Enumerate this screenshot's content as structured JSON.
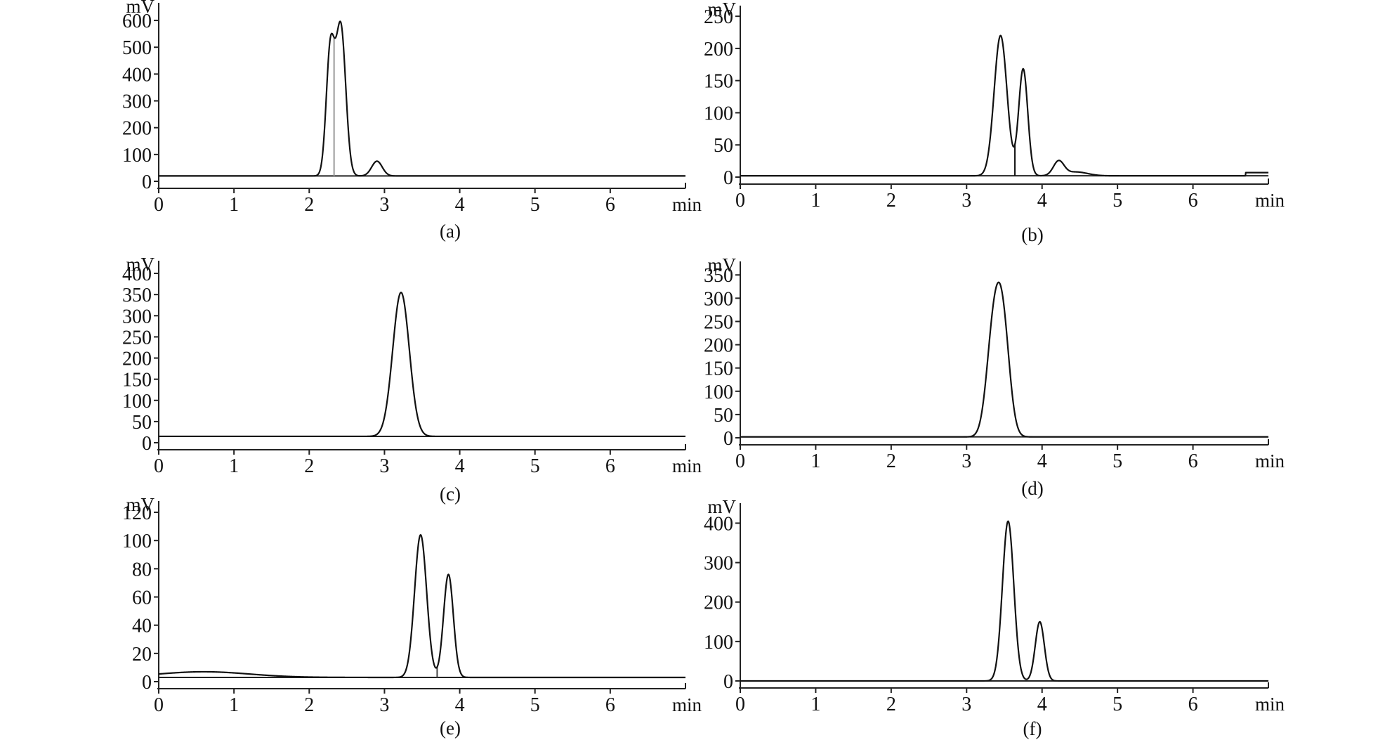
{
  "chart_data": [
    {
      "type": "line",
      "caption": "(a)",
      "xlabel": "min",
      "ylabel": "mV",
      "xlim": [
        0,
        7
      ],
      "ylim": [
        0,
        650
      ],
      "x_ticks": [
        0,
        1,
        2,
        3,
        4,
        5,
        6
      ],
      "y_ticks": [
        0,
        100,
        200,
        300,
        400,
        500,
        600
      ],
      "series": [
        {
          "baseline": 20,
          "peaks": [
            {
              "rt": 2.28,
              "height": 460,
              "sigma": 0.055
            },
            {
              "rt": 2.42,
              "height": 555,
              "sigma": 0.065
            },
            {
              "rt": 2.9,
              "height": 55,
              "sigma": 0.07
            }
          ],
          "drop_lines": [
            2.33
          ],
          "drop_line_color": "#999999"
        }
      ]
    },
    {
      "type": "line",
      "caption": "(b)",
      "xlabel": "min",
      "ylabel": "mV",
      "xlim": [
        0,
        7
      ],
      "ylim": [
        0,
        260
      ],
      "x_ticks": [
        0,
        1,
        2,
        3,
        4,
        5,
        6
      ],
      "y_ticks": [
        0,
        50,
        100,
        150,
        200,
        250
      ],
      "series": [
        {
          "baseline": 2,
          "peaks": [
            {
              "rt": 3.45,
              "height": 218,
              "sigma": 0.085
            },
            {
              "rt": 3.75,
              "height": 166,
              "sigma": 0.06
            },
            {
              "rt": 4.22,
              "height": 22,
              "sigma": 0.07
            },
            {
              "rt": 4.45,
              "height": 6,
              "sigma": 0.15
            }
          ],
          "drop_lines": [
            3.64
          ],
          "drop_line_color": "#111111",
          "tail_step": {
            "x": 6.7,
            "value": 5
          }
        }
      ]
    },
    {
      "type": "line",
      "caption": "(c)",
      "xlabel": "min",
      "ylabel": "mV",
      "xlim": [
        0,
        7
      ],
      "ylim": [
        0,
        420
      ],
      "x_ticks": [
        0,
        1,
        2,
        3,
        4,
        5,
        6
      ],
      "y_ticks": [
        0,
        50,
        100,
        150,
        200,
        250,
        300,
        350,
        400
      ],
      "series": [
        {
          "baseline": 15,
          "peaks": [
            {
              "rt": 3.22,
              "height": 340,
              "sigma": 0.11
            }
          ],
          "drop_lines": [],
          "drop_line_color": "#999999"
        }
      ]
    },
    {
      "type": "line",
      "caption": "(d)",
      "xlabel": "min",
      "ylabel": "mV",
      "xlim": [
        0,
        7
      ],
      "ylim": [
        0,
        370
      ],
      "x_ticks": [
        0,
        1,
        2,
        3,
        4,
        5,
        6
      ],
      "y_ticks": [
        0,
        50,
        100,
        150,
        200,
        250,
        300,
        350
      ],
      "series": [
        {
          "baseline": 2,
          "peaks": [
            {
              "rt": 3.35,
              "height": 200,
              "sigma": 0.09
            },
            {
              "rt": 3.48,
              "height": 230,
              "sigma": 0.09
            }
          ],
          "drop_lines": [],
          "drop_line_color": "#999999"
        }
      ]
    },
    {
      "type": "line",
      "caption": "(e)",
      "xlabel": "min",
      "ylabel": "mV",
      "xlim": [
        0,
        7
      ],
      "ylim": [
        0,
        125
      ],
      "x_ticks": [
        0,
        1,
        2,
        3,
        4,
        5,
        6
      ],
      "y_ticks": [
        0,
        20,
        40,
        60,
        80,
        100,
        120
      ],
      "series": [
        {
          "baseline": 3,
          "baseline_hump": {
            "x": 0.6,
            "height": 4,
            "sigma": 0.6
          },
          "peaks": [
            {
              "rt": 3.48,
              "height": 101,
              "sigma": 0.08
            },
            {
              "rt": 3.85,
              "height": 73,
              "sigma": 0.065
            }
          ],
          "drop_lines": [
            3.7
          ],
          "drop_line_color": "#444444"
        }
      ]
    },
    {
      "type": "line",
      "caption": "(f)",
      "xlabel": "min",
      "ylabel": "mV",
      "xlim": [
        0,
        7
      ],
      "ylim": [
        0,
        440
      ],
      "x_ticks": [
        0,
        1,
        2,
        3,
        4,
        5,
        6
      ],
      "y_ticks": [
        0,
        100,
        200,
        300,
        400
      ],
      "series": [
        {
          "baseline": 0,
          "peaks": [
            {
              "rt": 3.55,
              "height": 405,
              "sigma": 0.075
            },
            {
              "rt": 3.97,
              "height": 150,
              "sigma": 0.06
            }
          ],
          "drop_lines": [],
          "drop_line_color": "#999999"
        }
      ]
    }
  ]
}
